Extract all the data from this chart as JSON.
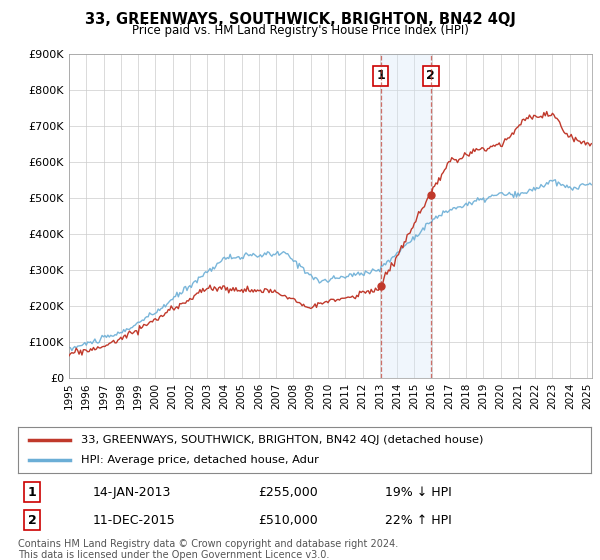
{
  "title": "33, GREENWAYS, SOUTHWICK, BRIGHTON, BN42 4QJ",
  "subtitle": "Price paid vs. HM Land Registry's House Price Index (HPI)",
  "ylim": [
    0,
    900000
  ],
  "yticks": [
    0,
    100000,
    200000,
    300000,
    400000,
    500000,
    600000,
    700000,
    800000,
    900000
  ],
  "ytick_labels": [
    "£0",
    "£100K",
    "£200K",
    "£300K",
    "£400K",
    "£500K",
    "£600K",
    "£700K",
    "£800K",
    "£900K"
  ],
  "xlim_start": 1995.0,
  "xlim_end": 2025.3,
  "xticks": [
    1995,
    1996,
    1997,
    1998,
    1999,
    2000,
    2001,
    2002,
    2003,
    2004,
    2005,
    2006,
    2007,
    2008,
    2009,
    2010,
    2011,
    2012,
    2013,
    2014,
    2015,
    2016,
    2017,
    2018,
    2019,
    2020,
    2021,
    2022,
    2023,
    2024,
    2025
  ],
  "hpi_color": "#6baed6",
  "price_color": "#c0392b",
  "shade_color": "#d6e8f7",
  "grid_color": "#cccccc",
  "bg_color": "#ffffff",
  "sale1_x": 2013.04,
  "sale1_y": 255000,
  "sale2_x": 2015.95,
  "sale2_y": 510000,
  "sale1_label": "14-JAN-2013",
  "sale1_price": "£255,000",
  "sale1_pct": "19% ↓ HPI",
  "sale2_label": "11-DEC-2015",
  "sale2_price": "£510,000",
  "sale2_pct": "22% ↑ HPI",
  "legend_line1": "33, GREENWAYS, SOUTHWICK, BRIGHTON, BN42 4QJ (detached house)",
  "legend_line2": "HPI: Average price, detached house, Adur",
  "footnote": "Contains HM Land Registry data © Crown copyright and database right 2024.\nThis data is licensed under the Open Government Licence v3.0.",
  "marker_box_color": "#cc0000"
}
